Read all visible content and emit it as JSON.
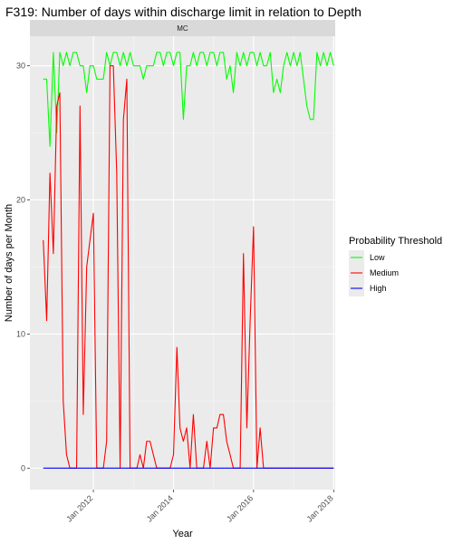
{
  "chart_data": {
    "type": "line",
    "title": "F319: Number of days within discharge limit in relation to Depth",
    "facet_label": "MC",
    "xlabel": "Year",
    "ylabel": "Number of days per Month",
    "x_ticks": [
      {
        "date": "2012-01-01",
        "label": "Jan 2012"
      },
      {
        "date": "2014-01-01",
        "label": "Jan 2014"
      },
      {
        "date": "2016-01-01",
        "label": "Jan 2016"
      },
      {
        "date": "2018-01-01",
        "label": "Jan 2018"
      }
    ],
    "xlim": [
      "2010-06-01",
      "2018-01-15"
    ],
    "y_ticks": [
      0,
      10,
      20,
      30
    ],
    "ylim": [
      -1.6,
      32.2
    ],
    "grid": true,
    "legend": {
      "title": "Probability Threshold",
      "position": "right",
      "entries": [
        {
          "name": "Low",
          "color": "#00ff00"
        },
        {
          "name": "Medium",
          "color": "#ff0000"
        },
        {
          "name": "High",
          "color": "#0000ff"
        }
      ]
    },
    "x_start": "2010-10-01",
    "series": [
      {
        "name": "Low",
        "color": "#00ff00",
        "values": [
          29,
          29,
          24,
          31,
          25,
          31,
          30,
          31,
          30,
          31,
          31,
          30,
          30,
          28,
          30,
          30,
          29,
          29,
          29,
          31,
          30,
          31,
          31,
          30,
          31,
          30,
          31,
          30,
          30,
          30,
          29,
          30,
          30,
          30,
          31,
          31,
          30,
          31,
          31,
          30,
          31,
          31,
          26,
          30,
          30,
          31,
          30,
          31,
          31,
          30,
          31,
          31,
          30,
          31,
          31,
          29,
          30,
          28,
          31,
          30,
          31,
          30,
          31,
          31,
          30,
          31,
          30,
          30,
          31,
          28,
          29,
          28,
          30,
          31,
          30,
          31,
          30,
          31,
          29,
          27,
          26,
          26,
          31,
          30,
          31,
          30,
          31,
          30
        ]
      },
      {
        "name": "Medium",
        "color": "#ff0000",
        "values": [
          17,
          11,
          22,
          16,
          27,
          28,
          5,
          1,
          0,
          0,
          0,
          27,
          4,
          15,
          17,
          19,
          0,
          0,
          0,
          2,
          30,
          30,
          22,
          0,
          26,
          29,
          0,
          0,
          0,
          1,
          0,
          2,
          2,
          1,
          0,
          0,
          0,
          0,
          0,
          1,
          9,
          3,
          2,
          3,
          0,
          4,
          0,
          0,
          0,
          2,
          0,
          3,
          3,
          4,
          4,
          2,
          1,
          0,
          0,
          0,
          16,
          3,
          11,
          18,
          0,
          3,
          0,
          0,
          0,
          0,
          0,
          0,
          0,
          0,
          0,
          0,
          0,
          0,
          0,
          0,
          0,
          0,
          0,
          0,
          0,
          0,
          0,
          0
        ]
      },
      {
        "name": "High",
        "color": "#0000ff",
        "values": [
          0,
          0,
          0,
          0,
          0,
          0,
          0,
          0,
          0,
          0,
          0,
          0,
          0,
          0,
          0,
          0,
          0,
          0,
          0,
          0,
          0,
          0,
          0,
          0,
          0,
          0,
          0,
          0,
          0,
          0,
          0,
          0,
          0,
          0,
          0,
          0,
          0,
          0,
          0,
          0,
          0,
          0,
          0,
          0,
          0,
          0,
          0,
          0,
          0,
          0,
          0,
          0,
          0,
          0,
          0,
          0,
          0,
          0,
          0,
          0,
          0,
          0,
          0,
          0,
          0,
          0,
          0,
          0,
          0,
          0,
          0,
          0,
          0,
          0,
          0,
          0,
          0,
          0,
          0,
          0,
          0,
          0,
          0,
          0,
          0,
          0,
          0,
          0
        ]
      }
    ]
  }
}
